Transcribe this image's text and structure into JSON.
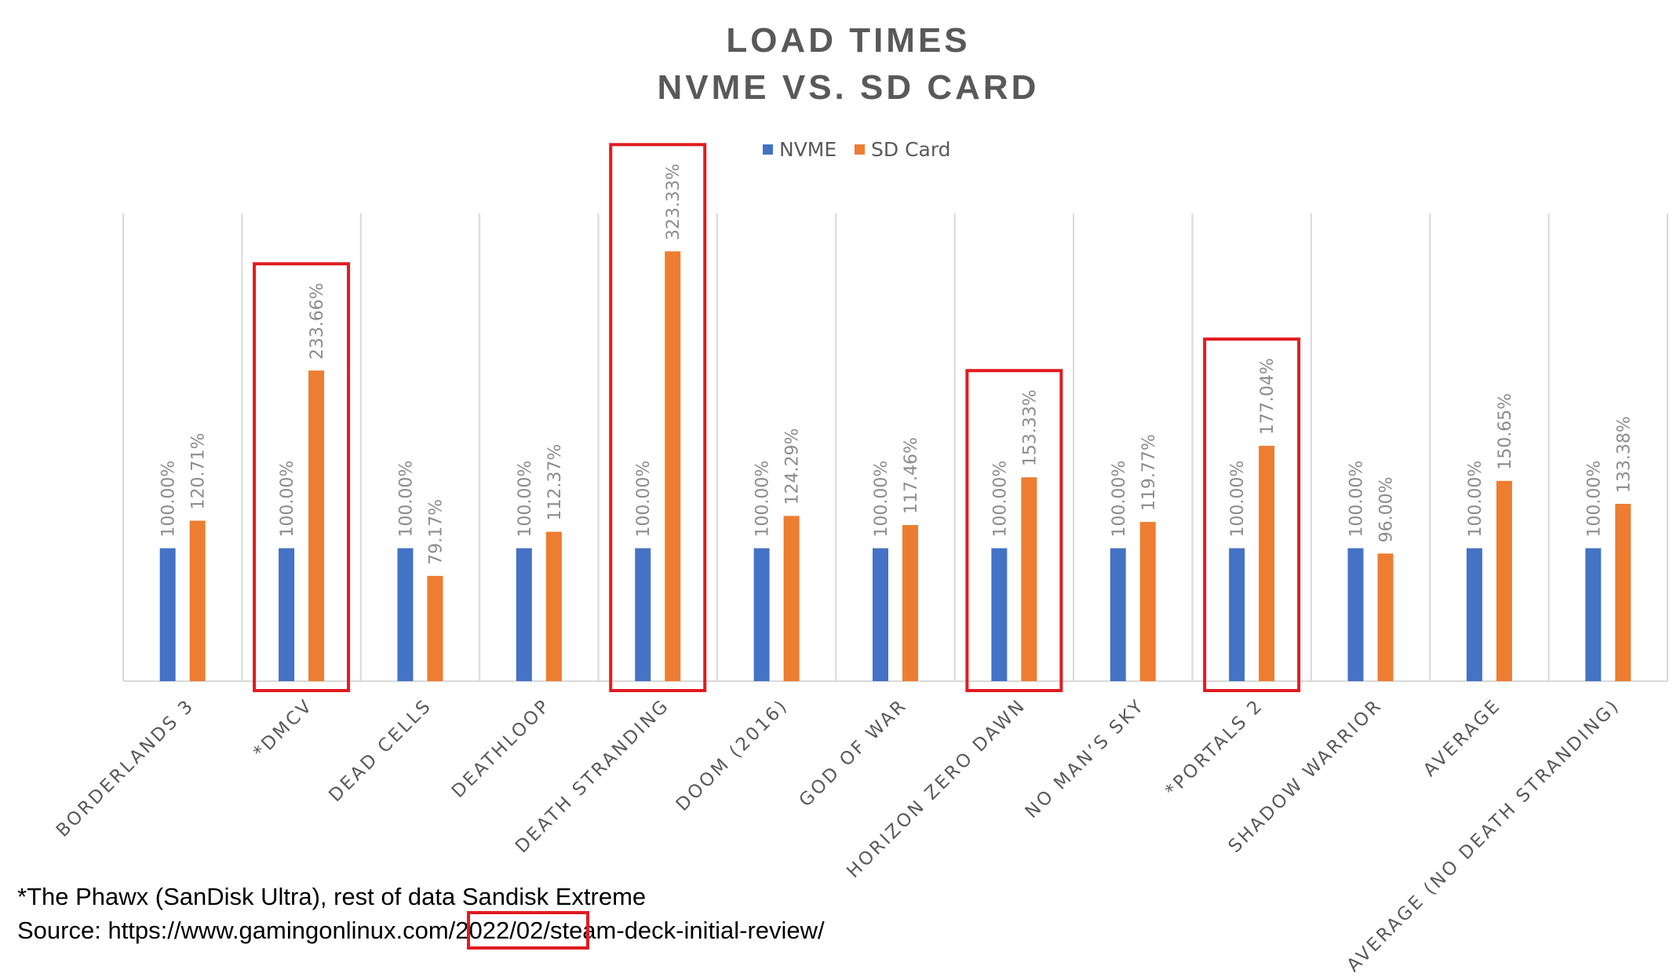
{
  "chart_data": {
    "type": "bar",
    "title": [
      "LOAD TIMES",
      "NVME VS. SD CARD"
    ],
    "categories": [
      "BORDERLANDS 3",
      "*DMCV",
      "DEAD CELLS",
      "DEATHLOOP",
      "DEATH STRANDING",
      "DOOM (2016)",
      "GOD OF WAR",
      "HORIZON ZERO DAWN",
      "NO MAN’S SKY",
      "*PORTALS 2",
      "SHADOW WARRIOR",
      "AVERAGE",
      "AVERAGE (NO DEATH STRANDING)"
    ],
    "series": [
      {
        "name": "NVME",
        "color": "#4472c4",
        "values": [
          100.0,
          100.0,
          100.0,
          100.0,
          100.0,
          100.0,
          100.0,
          100.0,
          100.0,
          100.0,
          100.0,
          100.0,
          100.0
        ],
        "labels": [
          "100.00%",
          "100.00%",
          "100.00%",
          "100.00%",
          "100.00%",
          "100.00%",
          "100.00%",
          "100.00%",
          "100.00%",
          "100.00%",
          "100.00%",
          "100.00%",
          "100.00%"
        ]
      },
      {
        "name": "SD Card",
        "color": "#ed7d31",
        "values": [
          120.71,
          233.66,
          79.17,
          112.37,
          323.33,
          124.29,
          117.46,
          153.33,
          119.77,
          177.04,
          96.0,
          150.65,
          133.38
        ],
        "labels": [
          "120.71%",
          "233.66%",
          "79.17%",
          "112.37%",
          "323.33%",
          "124.29%",
          "117.46%",
          "153.33%",
          "119.77%",
          "177.04%",
          "96.00%",
          "150.65%",
          "133.38%"
        ]
      }
    ],
    "ylim": [
      0,
      350
    ],
    "grid": "vertical category separators",
    "legend": "top-center",
    "highlighted_categories": [
      "*DMCV",
      "DEATH STRANDING",
      "HORIZON ZERO DAWN",
      "*PORTALS 2"
    ]
  },
  "footnote": {
    "line1": "*The Phawx (SanDisk Ultra), rest of data Sandisk Extreme",
    "line2_prefix": "Source: https://www.gamingonlinux.com",
    "line2_highlight": "/2022/02/",
    "line2_suffix": "steam-deck-initial-review/"
  }
}
